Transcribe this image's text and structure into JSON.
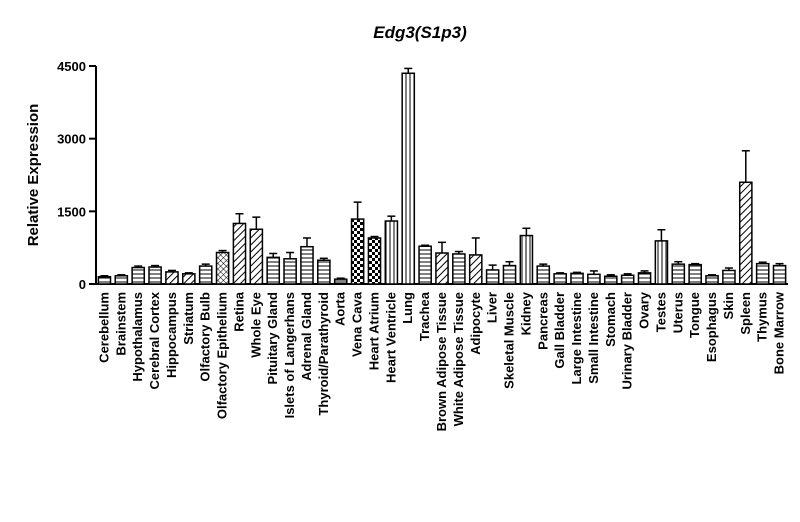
{
  "chart_data": {
    "type": "bar",
    "title": "Edg3(S1p3)",
    "xlabel": "",
    "ylabel": "Relative Expression",
    "ylim": [
      0,
      4500
    ],
    "yticks": [
      0,
      1500,
      3000,
      4500
    ],
    "grid": false,
    "legend": "none",
    "bar_color": "#000000",
    "categories": [
      "Cerebellum",
      "Brainstem",
      "Hypothalamus",
      "Cerebral Cortex",
      "Hippocampus",
      "Striatum",
      "Olfactory Bulb",
      "Olfactory Epithelium",
      "Retina",
      "Whole Eye",
      "Pituitary Gland",
      "Islets of Langerhans",
      "Adrenal Gland",
      "Thyroid/Parathyroid",
      "Aorta",
      "Vena Cava",
      "Heart Atrium",
      "Heart Ventricle",
      "Lung",
      "Trachea",
      "Brown Adipose Tissue",
      "White Adipose Tissue",
      "Adipocyte",
      "Liver",
      "Skeletal Muscle",
      "Kidney",
      "Pancreas",
      "Gall Bladder",
      "Large Intestine",
      "Small Intestine",
      "Stomach",
      "Urinary Bladder",
      "Ovary",
      "Testes",
      "Uterus",
      "Tongue",
      "Esophagus",
      "Skin",
      "Spleen",
      "Thymus",
      "Bone Marrow"
    ],
    "values": [
      150,
      170,
      340,
      350,
      250,
      210,
      370,
      650,
      1250,
      1130,
      550,
      520,
      770,
      490,
      100,
      1340,
      950,
      1300,
      4350,
      780,
      640,
      620,
      600,
      290,
      380,
      1000,
      370,
      210,
      220,
      200,
      160,
      180,
      230,
      890,
      410,
      400,
      170,
      280,
      2100,
      420,
      380
    ],
    "errors": [
      20,
      20,
      30,
      30,
      30,
      20,
      40,
      40,
      200,
      250,
      80,
      130,
      180,
      40,
      20,
      350,
      30,
      100,
      100,
      20,
      220,
      50,
      350,
      100,
      80,
      150,
      40,
      20,
      20,
      70,
      30,
      30,
      40,
      230,
      50,
      20,
      20,
      50,
      650,
      30,
      40
    ],
    "patterns": [
      "hlines",
      "hlines",
      "hlines",
      "hlines",
      "diagonal",
      "diagonal",
      "hlines",
      "dots",
      "diagonal",
      "diagonal",
      "hlines",
      "hlines",
      "hlines",
      "hlines",
      "dense-hlines",
      "checker",
      "checker",
      "vlines",
      "vlines",
      "hlines",
      "diagonal",
      "hlines",
      "diagonal",
      "hlines",
      "hlines",
      "vlines",
      "hlines",
      "hlines",
      "hlines",
      "hlines",
      "hlines",
      "hlines",
      "hlines",
      "vlines",
      "hlines",
      "hlines",
      "hlines",
      "hlines",
      "diagonal",
      "hlines",
      "hlines"
    ]
  }
}
